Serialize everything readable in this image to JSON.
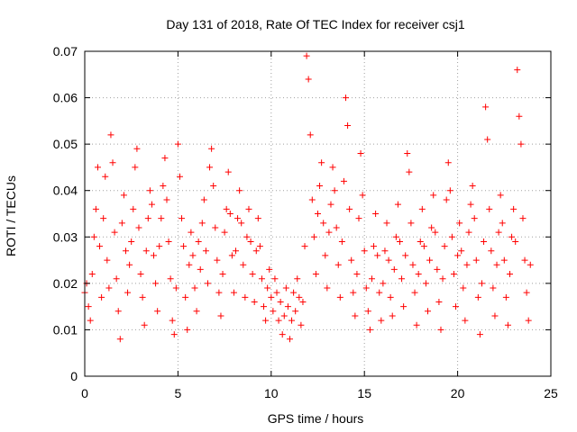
{
  "chart_data": {
    "type": "scatter",
    "title": "Day 131 of 2018, Rate Of TEC Index for receiver csj1",
    "xlabel": "GPS time / hours",
    "ylabel": "ROTI / TECUs",
    "xlim": [
      0,
      25
    ],
    "ylim": [
      0,
      0.07
    ],
    "xticks": [
      0,
      5,
      10,
      15,
      20,
      25
    ],
    "xtick_labels": [
      "0",
      "5",
      "10",
      "15",
      "20",
      "25"
    ],
    "yticks": [
      0,
      0.01,
      0.02,
      0.03,
      0.04,
      0.05,
      0.06,
      0.07
    ],
    "ytick_labels": [
      "0",
      "0.01",
      "0.02",
      "0.03",
      "0.04",
      "0.05",
      "0.06",
      "0.07"
    ],
    "grid": true,
    "marker": "+",
    "color": "#ff0000",
    "series": [
      {
        "name": "ROTI",
        "points": [
          [
            0.0,
            0.018
          ],
          [
            0.1,
            0.02
          ],
          [
            0.2,
            0.015
          ],
          [
            0.3,
            0.012
          ],
          [
            0.4,
            0.022
          ],
          [
            0.5,
            0.03
          ],
          [
            0.6,
            0.036
          ],
          [
            0.7,
            0.045
          ],
          [
            0.8,
            0.028
          ],
          [
            0.9,
            0.017
          ],
          [
            1.0,
            0.034
          ],
          [
            1.1,
            0.043
          ],
          [
            1.2,
            0.025
          ],
          [
            1.3,
            0.019
          ],
          [
            1.4,
            0.052
          ],
          [
            1.5,
            0.046
          ],
          [
            1.6,
            0.031
          ],
          [
            1.7,
            0.021
          ],
          [
            1.8,
            0.014
          ],
          [
            1.9,
            0.008
          ],
          [
            2.0,
            0.033
          ],
          [
            2.1,
            0.039
          ],
          [
            2.2,
            0.027
          ],
          [
            2.3,
            0.018
          ],
          [
            2.4,
            0.024
          ],
          [
            2.5,
            0.029
          ],
          [
            2.6,
            0.036
          ],
          [
            2.7,
            0.045
          ],
          [
            2.8,
            0.049
          ],
          [
            2.9,
            0.032
          ],
          [
            3.0,
            0.022
          ],
          [
            3.1,
            0.017
          ],
          [
            3.2,
            0.011
          ],
          [
            3.3,
            0.027
          ],
          [
            3.4,
            0.034
          ],
          [
            3.5,
            0.04
          ],
          [
            3.6,
            0.037
          ],
          [
            3.7,
            0.026
          ],
          [
            3.8,
            0.02
          ],
          [
            3.9,
            0.014
          ],
          [
            4.0,
            0.028
          ],
          [
            4.1,
            0.034
          ],
          [
            4.2,
            0.041
          ],
          [
            4.3,
            0.047
          ],
          [
            4.4,
            0.038
          ],
          [
            4.5,
            0.029
          ],
          [
            4.6,
            0.021
          ],
          [
            4.7,
            0.012
          ],
          [
            4.8,
            0.009
          ],
          [
            4.9,
            0.019
          ],
          [
            5.0,
            0.05
          ],
          [
            5.1,
            0.043
          ],
          [
            5.2,
            0.034
          ],
          [
            5.3,
            0.028
          ],
          [
            5.4,
            0.017
          ],
          [
            5.5,
            0.01
          ],
          [
            5.6,
            0.024
          ],
          [
            5.7,
            0.031
          ],
          [
            5.8,
            0.026
          ],
          [
            5.9,
            0.019
          ],
          [
            6.0,
            0.014
          ],
          [
            6.1,
            0.029
          ],
          [
            6.2,
            0.023
          ],
          [
            6.3,
            0.033
          ],
          [
            6.4,
            0.038
          ],
          [
            6.5,
            0.027
          ],
          [
            6.6,
            0.02
          ],
          [
            6.7,
            0.045
          ],
          [
            6.8,
            0.049
          ],
          [
            6.9,
            0.041
          ],
          [
            7.0,
            0.032
          ],
          [
            7.1,
            0.025
          ],
          [
            7.2,
            0.018
          ],
          [
            7.3,
            0.013
          ],
          [
            7.4,
            0.022
          ],
          [
            7.5,
            0.031
          ],
          [
            7.6,
            0.036
          ],
          [
            7.7,
            0.044
          ],
          [
            7.8,
            0.035
          ],
          [
            7.9,
            0.026
          ],
          [
            8.0,
            0.018
          ],
          [
            8.1,
            0.027
          ],
          [
            8.2,
            0.034
          ],
          [
            8.3,
            0.04
          ],
          [
            8.4,
            0.033
          ],
          [
            8.5,
            0.024
          ],
          [
            8.6,
            0.017
          ],
          [
            8.7,
            0.03
          ],
          [
            8.8,
            0.036
          ],
          [
            8.9,
            0.029
          ],
          [
            9.0,
            0.022
          ],
          [
            9.1,
            0.016
          ],
          [
            9.2,
            0.027
          ],
          [
            9.3,
            0.034
          ],
          [
            9.4,
            0.028
          ],
          [
            9.5,
            0.021
          ],
          [
            9.6,
            0.015
          ],
          [
            9.7,
            0.012
          ],
          [
            9.8,
            0.019
          ],
          [
            9.9,
            0.023
          ],
          [
            10.0,
            0.017
          ],
          [
            10.1,
            0.014
          ],
          [
            10.2,
            0.021
          ],
          [
            10.3,
            0.018
          ],
          [
            10.4,
            0.012
          ],
          [
            10.5,
            0.016
          ],
          [
            10.6,
            0.009
          ],
          [
            10.7,
            0.013
          ],
          [
            10.8,
            0.019
          ],
          [
            10.9,
            0.015
          ],
          [
            11.0,
            0.008
          ],
          [
            11.1,
            0.012
          ],
          [
            11.2,
            0.018
          ],
          [
            11.3,
            0.014
          ],
          [
            11.4,
            0.021
          ],
          [
            11.5,
            0.017
          ],
          [
            11.6,
            0.011
          ],
          [
            11.7,
            0.016
          ],
          [
            11.8,
            0.028
          ],
          [
            11.9,
            0.069
          ],
          [
            12.0,
            0.064
          ],
          [
            12.1,
            0.052
          ],
          [
            12.2,
            0.038
          ],
          [
            12.3,
            0.03
          ],
          [
            12.4,
            0.022
          ],
          [
            12.5,
            0.035
          ],
          [
            12.6,
            0.041
          ],
          [
            12.7,
            0.046
          ],
          [
            12.8,
            0.033
          ],
          [
            12.9,
            0.026
          ],
          [
            13.0,
            0.019
          ],
          [
            13.1,
            0.031
          ],
          [
            13.2,
            0.037
          ],
          [
            13.3,
            0.045
          ],
          [
            13.4,
            0.04
          ],
          [
            13.5,
            0.032
          ],
          [
            13.6,
            0.024
          ],
          [
            13.7,
            0.017
          ],
          [
            13.8,
            0.029
          ],
          [
            13.9,
            0.042
          ],
          [
            14.0,
            0.06
          ],
          [
            14.1,
            0.054
          ],
          [
            14.2,
            0.036
          ],
          [
            14.3,
            0.025
          ],
          [
            14.4,
            0.018
          ],
          [
            14.5,
            0.013
          ],
          [
            14.6,
            0.022
          ],
          [
            14.7,
            0.034
          ],
          [
            14.8,
            0.048
          ],
          [
            14.9,
            0.039
          ],
          [
            15.0,
            0.027
          ],
          [
            15.1,
            0.019
          ],
          [
            15.2,
            0.014
          ],
          [
            15.3,
            0.01
          ],
          [
            15.4,
            0.021
          ],
          [
            15.5,
            0.028
          ],
          [
            15.6,
            0.035
          ],
          [
            15.7,
            0.026
          ],
          [
            15.8,
            0.018
          ],
          [
            15.9,
            0.012
          ],
          [
            16.0,
            0.02
          ],
          [
            16.1,
            0.027
          ],
          [
            16.2,
            0.033
          ],
          [
            16.3,
            0.025
          ],
          [
            16.4,
            0.017
          ],
          [
            16.5,
            0.013
          ],
          [
            16.6,
            0.023
          ],
          [
            16.7,
            0.03
          ],
          [
            16.8,
            0.037
          ],
          [
            16.9,
            0.029
          ],
          [
            17.0,
            0.021
          ],
          [
            17.1,
            0.015
          ],
          [
            17.2,
            0.026
          ],
          [
            17.3,
            0.048
          ],
          [
            17.4,
            0.044
          ],
          [
            17.5,
            0.033
          ],
          [
            17.6,
            0.024
          ],
          [
            17.7,
            0.018
          ],
          [
            17.8,
            0.011
          ],
          [
            17.9,
            0.022
          ],
          [
            18.0,
            0.029
          ],
          [
            18.1,
            0.036
          ],
          [
            18.2,
            0.028
          ],
          [
            18.3,
            0.02
          ],
          [
            18.4,
            0.014
          ],
          [
            18.5,
            0.025
          ],
          [
            18.6,
            0.032
          ],
          [
            18.7,
            0.039
          ],
          [
            18.8,
            0.031
          ],
          [
            18.9,
            0.023
          ],
          [
            19.0,
            0.016
          ],
          [
            19.1,
            0.01
          ],
          [
            19.2,
            0.021
          ],
          [
            19.3,
            0.028
          ],
          [
            19.4,
            0.038
          ],
          [
            19.5,
            0.046
          ],
          [
            19.6,
            0.04
          ],
          [
            19.7,
            0.03
          ],
          [
            19.8,
            0.022
          ],
          [
            19.9,
            0.015
          ],
          [
            20.0,
            0.026
          ],
          [
            20.1,
            0.033
          ],
          [
            20.2,
            0.027
          ],
          [
            20.3,
            0.019
          ],
          [
            20.4,
            0.012
          ],
          [
            20.5,
            0.024
          ],
          [
            20.6,
            0.031
          ],
          [
            20.7,
            0.037
          ],
          [
            20.8,
            0.041
          ],
          [
            20.9,
            0.034
          ],
          [
            21.0,
            0.025
          ],
          [
            21.1,
            0.017
          ],
          [
            21.2,
            0.009
          ],
          [
            21.3,
            0.02
          ],
          [
            21.4,
            0.029
          ],
          [
            21.5,
            0.058
          ],
          [
            21.6,
            0.051
          ],
          [
            21.7,
            0.036
          ],
          [
            21.8,
            0.027
          ],
          [
            21.9,
            0.019
          ],
          [
            22.0,
            0.013
          ],
          [
            22.1,
            0.024
          ],
          [
            22.2,
            0.031
          ],
          [
            22.3,
            0.039
          ],
          [
            22.4,
            0.033
          ],
          [
            22.5,
            0.025
          ],
          [
            22.6,
            0.017
          ],
          [
            22.7,
            0.011
          ],
          [
            22.8,
            0.022
          ],
          [
            22.9,
            0.03
          ],
          [
            23.0,
            0.036
          ],
          [
            23.1,
            0.029
          ],
          [
            23.2,
            0.066
          ],
          [
            23.3,
            0.056
          ],
          [
            23.4,
            0.05
          ],
          [
            23.5,
            0.034
          ],
          [
            23.6,
            0.025
          ],
          [
            23.7,
            0.018
          ],
          [
            23.8,
            0.012
          ],
          [
            23.9,
            0.024
          ]
        ]
      }
    ]
  }
}
